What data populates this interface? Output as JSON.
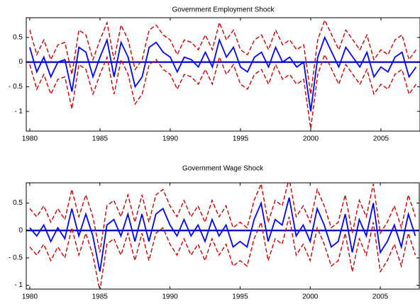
{
  "chart_data": [
    {
      "type": "line",
      "title": "Government Employment Shock",
      "x": [
        1980,
        1980.5,
        1981,
        1981.5,
        1982,
        1982.5,
        1983,
        1983.5,
        1984,
        1984.5,
        1985,
        1985.5,
        1986,
        1986.5,
        1987,
        1987.5,
        1988,
        1988.5,
        1989,
        1989.5,
        1990,
        1990.5,
        1991,
        1991.5,
        1992,
        1992.5,
        1993,
        1993.5,
        1994,
        1994.5,
        1995,
        1995.5,
        1996,
        1996.5,
        1997,
        1997.5,
        1998,
        1998.5,
        1999,
        1999.5,
        2000,
        2000.5,
        2001,
        2001.5,
        2002,
        2002.5,
        2003,
        2003.5,
        2004,
        2004.5,
        2005,
        2005.5,
        2006,
        2006.5,
        2007,
        2007.5
      ],
      "series": [
        {
          "color": "#cc0000",
          "dashed": true,
          "values": [
            0.65,
            0.15,
            0.45,
            0.05,
            0.35,
            0.4,
            -0.25,
            0.65,
            0.55,
            0.05,
            0.45,
            0.8,
            0.05,
            0.75,
            0.45,
            -0.15,
            0.05,
            0.65,
            0.75,
            0.55,
            0.45,
            0.15,
            0.45,
            0.4,
            0.25,
            0.55,
            0.25,
            0.8,
            0.45,
            0.65,
            0.25,
            0.15,
            0.45,
            0.55,
            0.25,
            0.65,
            0.35,
            0.45,
            0.25,
            0.35,
            -0.65,
            0.45,
            0.85,
            0.55,
            0.25,
            0.65,
            0.45,
            0.25,
            0.55,
            0.05,
            0.25,
            0.15,
            0.45,
            0.55,
            0.05,
            0.25
          ]
        },
        {
          "color": "#cc0000",
          "dashed": true,
          "values": [
            -0.05,
            -0.55,
            -0.25,
            -0.65,
            -0.35,
            -0.3,
            -0.95,
            -0.05,
            -0.15,
            -0.65,
            -0.25,
            0.1,
            -0.65,
            0.05,
            -0.25,
            -0.85,
            -0.65,
            -0.05,
            0.05,
            -0.15,
            -0.25,
            -0.55,
            -0.25,
            -0.3,
            -0.45,
            -0.15,
            -0.45,
            0.1,
            -0.25,
            -0.05,
            -0.45,
            -0.55,
            -0.25,
            -0.15,
            -0.45,
            -0.05,
            -0.35,
            -0.25,
            -0.45,
            -0.35,
            -1.35,
            -0.25,
            0.15,
            -0.15,
            -0.45,
            -0.05,
            -0.25,
            -0.45,
            -0.15,
            -0.65,
            -0.45,
            -0.55,
            -0.25,
            -0.15,
            -0.65,
            -0.45
          ]
        },
        {
          "color": "#0000ff",
          "dashed": false,
          "values": [
            0.3,
            -0.2,
            0.1,
            -0.3,
            0,
            0.05,
            -0.6,
            0.3,
            0.2,
            -0.3,
            0.1,
            0.45,
            -0.3,
            0.4,
            0.1,
            -0.5,
            -0.3,
            0.3,
            0.4,
            0.2,
            0.1,
            -0.2,
            0.1,
            0.05,
            -0.1,
            0.2,
            -0.1,
            0.45,
            0.1,
            0.3,
            -0.1,
            -0.2,
            0.1,
            0.2,
            -0.1,
            0.3,
            0,
            0.1,
            -0.1,
            0,
            -1.0,
            0.1,
            0.5,
            0.2,
            -0.1,
            0.3,
            0.1,
            -0.1,
            0.2,
            -0.3,
            -0.1,
            -0.2,
            0.1,
            0.2,
            -0.3,
            -0.1
          ]
        }
      ],
      "xlim": [
        1979.75,
        2007.78
      ],
      "ylim": [
        -1.4,
        0.9
      ],
      "xticks": [
        1980,
        1985,
        1990,
        1995,
        2000,
        2005
      ],
      "yticks": [
        {
          "value": -1,
          "label": "- 1"
        },
        {
          "value": -0.5,
          "label": "- 0.5"
        },
        0,
        0.5
      ]
    },
    {
      "type": "line",
      "title": "Government Wage Shock",
      "x": [
        1980,
        1980.5,
        1981,
        1981.5,
        1982,
        1982.5,
        1983,
        1983.5,
        1984,
        1984.5,
        1985,
        1985.5,
        1986,
        1986.5,
        1987,
        1987.5,
        1988,
        1988.5,
        1989,
        1989.5,
        1990,
        1990.5,
        1991,
        1991.5,
        1992,
        1992.5,
        1993,
        1993.5,
        1994,
        1994.5,
        1995,
        1995.5,
        1996,
        1996.5,
        1997,
        1997.5,
        1998,
        1998.5,
        1999,
        1999.5,
        2000,
        2000.5,
        2001,
        2001.5,
        2002,
        2002.5,
        2003,
        2003.5,
        2004,
        2004.5,
        2005,
        2005.5,
        2006,
        2006.5,
        2007,
        2007.5
      ],
      "series": [
        {
          "color": "#cc0000",
          "dashed": true,
          "values": [
            0.4,
            0.25,
            0.45,
            0.15,
            0.4,
            0.2,
            0.75,
            0.25,
            0.65,
            0.25,
            -0.4,
            0.45,
            0.55,
            0.25,
            0.65,
            0.15,
            0.65,
            0.15,
            0.65,
            0.75,
            0.45,
            0.25,
            0.55,
            0.25,
            0.45,
            0.15,
            0.55,
            0.25,
            0.45,
            0.05,
            0.15,
            0.05,
            0.55,
            0.85,
            0.15,
            0.55,
            0.45,
            0.95,
            0.25,
            0.45,
            0.15,
            0.75,
            0.45,
            0.05,
            0.15,
            0.65,
            -0.05,
            0.55,
            0.25,
            0.85,
            -0.05,
            0.15,
            0.45,
            0.05,
            0.65,
            0.25
          ]
        },
        {
          "color": "#cc0000",
          "dashed": true,
          "values": [
            -0.3,
            -0.45,
            -0.25,
            -0.55,
            -0.3,
            -0.5,
            0.05,
            -0.45,
            -0.05,
            -0.45,
            -1.1,
            -0.25,
            -0.15,
            -0.45,
            -0.05,
            -0.55,
            -0.05,
            -0.55,
            -0.05,
            0.05,
            -0.25,
            -0.45,
            -0.15,
            -0.45,
            -0.25,
            -0.55,
            -0.15,
            -0.45,
            -0.25,
            -0.65,
            -0.55,
            -0.65,
            -0.15,
            0.15,
            -0.55,
            -0.15,
            -0.25,
            0.25,
            -0.45,
            -0.25,
            -0.55,
            0.05,
            -0.25,
            -0.65,
            -0.55,
            -0.05,
            -0.75,
            -0.15,
            -0.45,
            0.15,
            -0.75,
            -0.55,
            -0.25,
            -0.65,
            -0.05,
            -0.45
          ]
        },
        {
          "color": "#0000ff",
          "dashed": false,
          "values": [
            0.05,
            -0.1,
            0.1,
            -0.2,
            0.05,
            -0.15,
            0.4,
            -0.1,
            0.3,
            -0.1,
            -0.75,
            0.1,
            0.2,
            -0.1,
            0.3,
            -0.2,
            0.3,
            -0.2,
            0.3,
            0.4,
            0.1,
            -0.1,
            0.2,
            -0.1,
            0.1,
            -0.2,
            0.2,
            -0.1,
            0.1,
            -0.3,
            -0.2,
            -0.3,
            0.2,
            0.5,
            -0.2,
            0.2,
            0.1,
            0.6,
            -0.1,
            0.1,
            -0.2,
            0.4,
            0.1,
            -0.3,
            -0.2,
            0.3,
            -0.4,
            0.2,
            -0.1,
            0.5,
            -0.4,
            -0.2,
            0.1,
            -0.3,
            0.3,
            -0.1
          ]
        }
      ],
      "xlim": [
        1979.75,
        2007.78
      ],
      "ylim": [
        -1.07,
        0.87
      ],
      "xticks": [
        1980,
        1985,
        1990,
        1995,
        2000,
        2005
      ],
      "yticks": [
        {
          "value": -1,
          "label": "- 1"
        },
        {
          "value": -0.5,
          "label": "- 0.5"
        },
        0,
        0.5
      ]
    }
  ]
}
